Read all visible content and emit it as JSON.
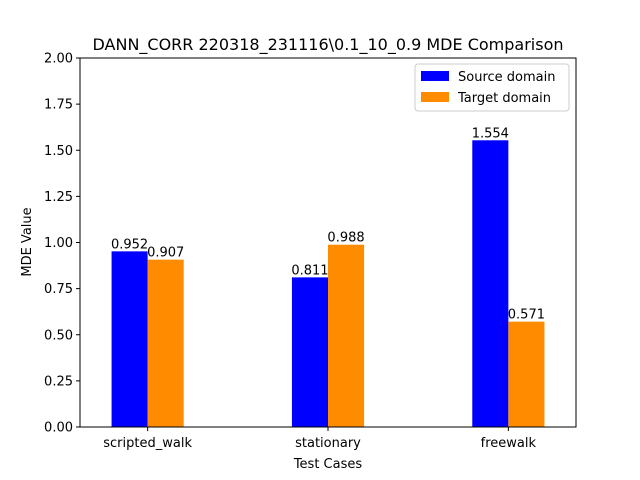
{
  "chart_data": {
    "type": "bar",
    "title": "DANN_CORR 220318_231116\\0.1_10_0.9 MDE Comparison",
    "xlabel": "Test Cases",
    "ylabel": "MDE Value",
    "categories": [
      "scripted_walk",
      "stationary",
      "freewalk"
    ],
    "series": [
      {
        "name": "Source domain",
        "color": "#0000ff",
        "values": [
          0.952,
          0.811,
          1.554
        ],
        "labels": [
          "0.952",
          "0.811",
          "1.554"
        ]
      },
      {
        "name": "Target domain",
        "color": "#ff8c00",
        "values": [
          0.907,
          0.988,
          0.571
        ],
        "labels": [
          "0.907",
          "0.988",
          "0.571"
        ]
      }
    ],
    "ylim": [
      0,
      2
    ],
    "yticks": [
      "0.00",
      "0.25",
      "0.50",
      "0.75",
      "1.00",
      "1.25",
      "1.50",
      "1.75",
      "2.00"
    ],
    "grid": false,
    "legend_position": "top-right"
  }
}
